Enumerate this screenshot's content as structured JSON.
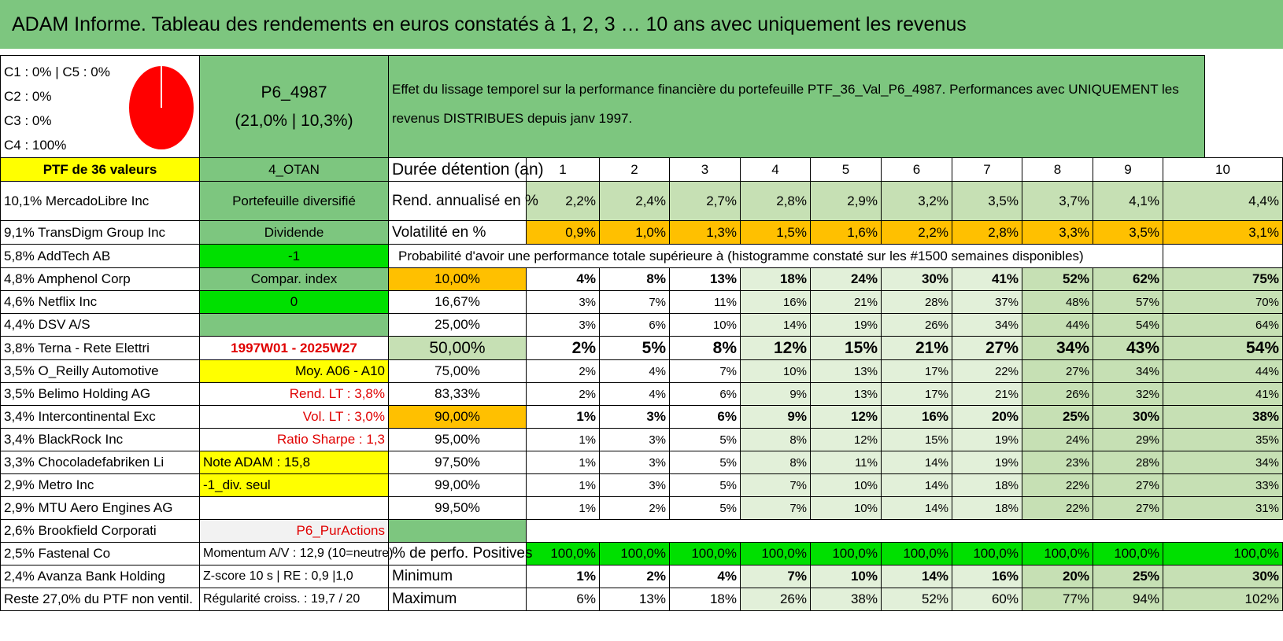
{
  "title": "ADAM Informe. Tableau des rendements en euros constatés à 1, 2, 3 … 10 ans avec uniquement les revenus",
  "info": {
    "c1_c5": "C1 : 0% | C5 : 0%",
    "c2": "C2 : 0%",
    "c3": "C3 : 0%",
    "c4": "C4 : 100%",
    "pie_color": "#ff0000"
  },
  "portfolio": {
    "name": "P6_4987",
    "stats": "(21,0% | 10,3%)",
    "description": "Effet du lissage temporel sur la performance financière du portefeuille PTF_36_Val_P6_4987. Performances avec UNIQUEMENT les revenus DISTRIBUES depuis janv 1997.",
    "ptf_count": "PTF de 36 valeurs",
    "zone": "4_OTAN",
    "type": "Portefeuille diversifié",
    "income": "Dividende",
    "minus1": "-1",
    "compar_label": "Compar. index",
    "compar_value": "0",
    "period": "1997W01 - 2025W27",
    "moy": "Moy. A06 - A10",
    "rend_lt": "Rend. LT : 3,8%",
    "vol_lt": "Vol. LT : 3,0%",
    "sharpe": "Ratio Sharpe : 1,3",
    "note": "Note ADAM : 15,8",
    "div_seul": "-1_div. seul",
    "pur_actions": "P6_PurActions",
    "momentum": "Momentum A/V : 12,9 (10=neutre)",
    "zscore": "Z-score 10 s | RE : 0,9 |1,0",
    "regularite": "Régularité croiss. : 19,7 / 20"
  },
  "holdings": [
    "10,1% MercadoLibre Inc",
    "9,1% TransDigm Group Inc",
    "5,8% AddTech AB",
    "4,8% Amphenol Corp",
    "4,6% Netflix Inc",
    "4,4% DSV A/S",
    "3,8% Terna - Rete Elettri",
    "3,5% O_Reilly Automotive",
    "3,5% Belimo Holding AG",
    "3,4% Intercontinental Exc",
    "3,4% BlackRock Inc",
    "3,3% Chocoladefabriken Li",
    "2,9% Metro Inc",
    "2,9% MTU Aero Engines AG",
    "2,6% Brookfield Corporati",
    "2,5% Fastenal Co",
    "2,4% Avanza Bank Holding",
    "Reste 27,0% du PTF non ventil."
  ],
  "table": {
    "duree_label": "Durée détention (an)",
    "years": [
      "1",
      "2",
      "3",
      "4",
      "5",
      "6",
      "7",
      "8",
      "9",
      "10"
    ],
    "rend_label": "Rend. annualisé en %",
    "rend": [
      "2,2%",
      "2,4%",
      "2,7%",
      "2,8%",
      "2,9%",
      "3,2%",
      "3,5%",
      "3,7%",
      "4,1%",
      "4,4%"
    ],
    "vol_label": "Volatilité en %",
    "vol": [
      "0,9%",
      "1,0%",
      "1,3%",
      "1,5%",
      "1,6%",
      "2,2%",
      "2,8%",
      "3,3%",
      "3,5%",
      "3,1%"
    ],
    "proba_label": "Probabilité d'avoir une performance totale supérieure à (histogramme constaté sur les #1500 semaines disponibles)",
    "proba_rows": [
      {
        "p": "10,00%",
        "v": [
          "4%",
          "8%",
          "13%",
          "18%",
          "24%",
          "30%",
          "41%",
          "52%",
          "62%",
          "75%"
        ]
      },
      {
        "p": "16,67%",
        "v": [
          "3%",
          "7%",
          "11%",
          "16%",
          "21%",
          "28%",
          "37%",
          "48%",
          "57%",
          "70%"
        ]
      },
      {
        "p": "25,00%",
        "v": [
          "3%",
          "6%",
          "10%",
          "14%",
          "19%",
          "26%",
          "34%",
          "44%",
          "54%",
          "64%"
        ]
      },
      {
        "p": "50,00%",
        "v": [
          "2%",
          "5%",
          "8%",
          "12%",
          "15%",
          "21%",
          "27%",
          "34%",
          "43%",
          "54%"
        ]
      },
      {
        "p": "75,00%",
        "v": [
          "2%",
          "4%",
          "7%",
          "10%",
          "13%",
          "17%",
          "22%",
          "27%",
          "34%",
          "44%"
        ]
      },
      {
        "p": "83,33%",
        "v": [
          "2%",
          "4%",
          "6%",
          "9%",
          "13%",
          "17%",
          "21%",
          "26%",
          "32%",
          "41%"
        ]
      },
      {
        "p": "90,00%",
        "v": [
          "1%",
          "3%",
          "6%",
          "9%",
          "12%",
          "16%",
          "20%",
          "25%",
          "30%",
          "38%"
        ]
      },
      {
        "p": "95,00%",
        "v": [
          "1%",
          "3%",
          "5%",
          "8%",
          "12%",
          "15%",
          "19%",
          "24%",
          "29%",
          "35%"
        ]
      },
      {
        "p": "97,50%",
        "v": [
          "1%",
          "3%",
          "5%",
          "8%",
          "11%",
          "14%",
          "19%",
          "23%",
          "28%",
          "34%"
        ]
      },
      {
        "p": "99,00%",
        "v": [
          "1%",
          "3%",
          "5%",
          "7%",
          "10%",
          "14%",
          "18%",
          "22%",
          "27%",
          "33%"
        ]
      },
      {
        "p": "99,50%",
        "v": [
          "1%",
          "2%",
          "5%",
          "7%",
          "10%",
          "14%",
          "18%",
          "22%",
          "27%",
          "31%"
        ]
      }
    ],
    "pos_label": "% de perfo. Positives",
    "pos": [
      "100,0%",
      "100,0%",
      "100,0%",
      "100,0%",
      "100,0%",
      "100,0%",
      "100,0%",
      "100,0%",
      "100,0%",
      "100,0%"
    ],
    "min_label": "Minimum",
    "min": [
      "1%",
      "2%",
      "4%",
      "7%",
      "10%",
      "14%",
      "16%",
      "20%",
      "25%",
      "30%"
    ],
    "max_label": "Maximum",
    "max": [
      "6%",
      "13%",
      "18%",
      "26%",
      "38%",
      "52%",
      "60%",
      "77%",
      "94%",
      "102%"
    ]
  }
}
